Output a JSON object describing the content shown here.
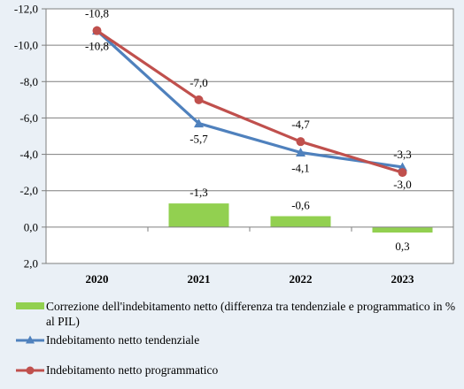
{
  "chart_data": {
    "type": "bar+line",
    "title": "",
    "xlabel": "",
    "ylabel": "",
    "categories": [
      "2020",
      "2021",
      "2022",
      "2023"
    ],
    "y_axis": {
      "reversed": true,
      "ylim": [
        2.0,
        -12.0
      ],
      "ticks": [
        -12.0,
        -10.0,
        -8.0,
        -6.0,
        -4.0,
        -2.0,
        0.0,
        2.0
      ],
      "tick_labels": [
        "-12,0",
        "-10,0",
        "-8,0",
        "-6,0",
        "-4,0",
        "-2,0",
        "0,0",
        "2,0"
      ]
    },
    "grid": true,
    "series": [
      {
        "name": "Correzione dell'indebitamento netto (differenza tra tendenziale e programmatico in % al PIL)",
        "type": "bar",
        "color": "#92d050",
        "values": [
          null,
          -1.3,
          -0.6,
          0.3
        ],
        "labels": [
          "",
          "-1,3",
          "-0,6",
          "0,3"
        ]
      },
      {
        "name": "Indebitamento netto tendenziale",
        "type": "line",
        "marker": "triangle",
        "color": "#4f81bd",
        "values": [
          -10.8,
          -5.7,
          -4.1,
          -3.3
        ],
        "labels": [
          "-10,8",
          "-5,7",
          "-4,1",
          "-3,3"
        ]
      },
      {
        "name": "Indebitamento netto programmatico",
        "type": "line",
        "marker": "circle",
        "color": "#c0504d",
        "values": [
          -10.8,
          -7.0,
          -4.7,
          -3.0
        ],
        "labels": [
          "-10,8",
          "-7,0",
          "-4,7",
          "-3,0"
        ]
      }
    ],
    "legend_position": "bottom"
  }
}
